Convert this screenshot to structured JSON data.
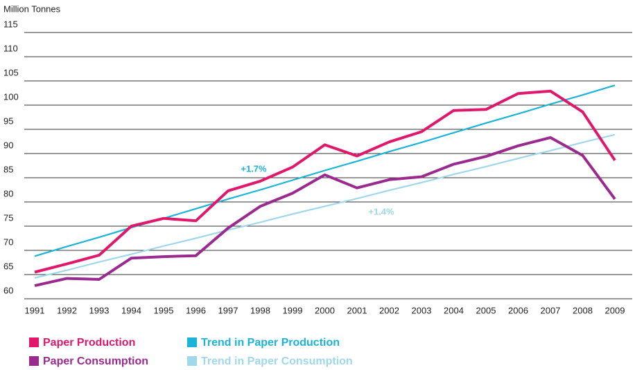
{
  "chart_data": {
    "type": "line",
    "y_axis_label": "Million Tonnes",
    "categories": [
      "1991",
      "1992",
      "1993",
      "1994",
      "1995",
      "1996",
      "1997",
      "1998",
      "1999",
      "2000",
      "2001",
      "2002",
      "2003",
      "2004",
      "2005",
      "2006",
      "2007",
      "2008",
      "2009"
    ],
    "ylim": [
      60,
      115
    ],
    "yticks": [
      60,
      65,
      70,
      75,
      80,
      85,
      90,
      95,
      100,
      105,
      110,
      115
    ],
    "grid": true,
    "series": [
      {
        "name": "Paper Production",
        "color": "#e0176a",
        "values": [
          65.5,
          67.2,
          69,
          75,
          76.6,
          76.1,
          82.3,
          84.3,
          87.2,
          91.8,
          89.5,
          92.4,
          94.5,
          98.9,
          99.1,
          102.4,
          102.9,
          98.6,
          88.6
        ]
      },
      {
        "name": "Paper Consumption",
        "color": "#9b2a8f",
        "values": [
          62.7,
          64.2,
          64,
          68.4,
          68.7,
          68.9,
          74.6,
          79.1,
          81.8,
          85.6,
          82.9,
          84.6,
          85.2,
          87.8,
          89.4,
          91.6,
          93.3,
          89.6,
          80.6
        ]
      },
      {
        "name": "Trend in Paper Production",
        "color": "#1ab4d8",
        "values": [
          68.8,
          70.8,
          72.7,
          74.7,
          76.6,
          78.6,
          80.6,
          82.5,
          84.5,
          86.5,
          88.4,
          90.4,
          92.3,
          94.3,
          96.3,
          98.2,
          100.2,
          102.1,
          104.1
        ]
      },
      {
        "name": "Trend in Paper Consumption",
        "color": "#9ed8ea",
        "values": [
          64.3,
          65.9,
          67.6,
          69.2,
          70.9,
          72.5,
          74.2,
          75.8,
          77.5,
          79.1,
          80.7,
          82.4,
          84.0,
          85.7,
          87.3,
          89.0,
          90.6,
          92.3,
          93.9
        ]
      }
    ],
    "annotations": [
      {
        "text": "+1.7%",
        "color": "#1ab4d8"
      },
      {
        "text": "+1.4%",
        "color": "#9ed8ea"
      }
    ]
  }
}
